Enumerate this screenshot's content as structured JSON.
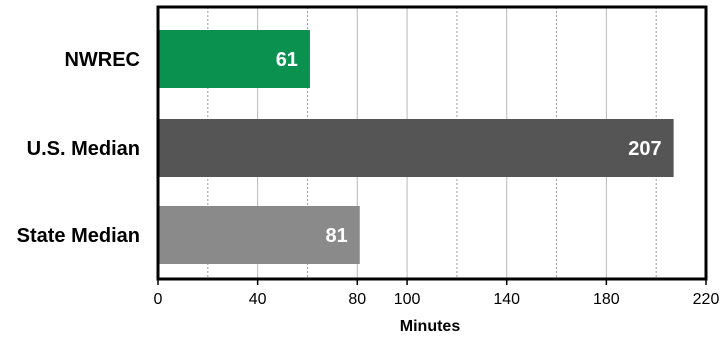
{
  "chart_data": {
    "type": "bar",
    "orientation": "horizontal",
    "categories": [
      "NWREC",
      "U.S. Median",
      "State Median"
    ],
    "values": [
      61,
      207,
      81
    ],
    "colors": [
      "#0a9150",
      "#555555",
      "#8a8a8a"
    ],
    "data_labels": [
      "61",
      "207",
      "81"
    ],
    "xlabel": "Minutes",
    "xlim": [
      0,
      220
    ],
    "x_ticks": [
      0,
      40,
      80,
      100,
      140,
      180,
      220
    ],
    "x_ticks_major": [
      0,
      40,
      80,
      100,
      140,
      180,
      220
    ],
    "x_gridlines_solid": [
      40,
      80,
      100,
      140,
      180
    ],
    "x_gridlines_dashed": [
      20,
      60,
      120,
      160,
      200
    ],
    "grid": true,
    "legend": "none"
  }
}
